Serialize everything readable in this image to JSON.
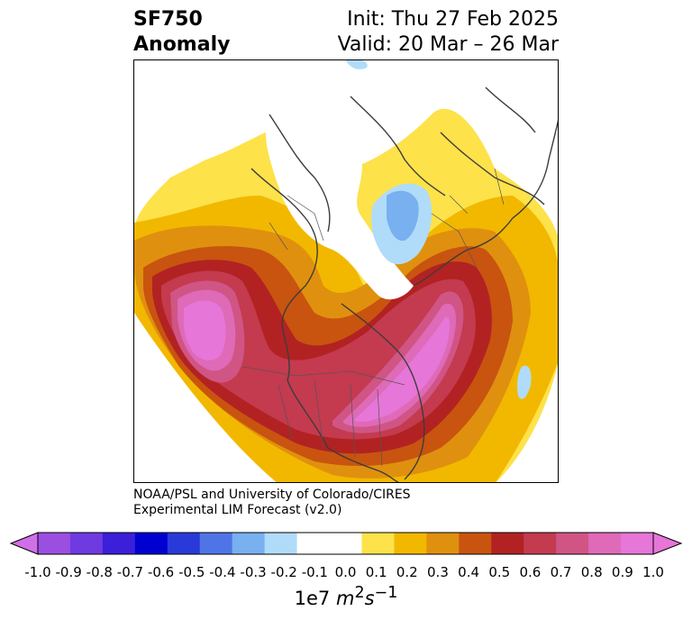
{
  "title": {
    "left_line1": "SF750",
    "left_line2": "Anomaly",
    "right_line1": "Init: Thu 27 Feb 2025",
    "right_line2": "Valid: 20 Mar – 26 Mar"
  },
  "credit": {
    "line1": "NOAA/PSL and University of Colorado/CIRES",
    "line2": "Experimental LIM Forecast (v2.0)"
  },
  "colorbar": {
    "levels": [
      "-1.0",
      "-0.9",
      "-0.8",
      "-0.7",
      "-0.6",
      "-0.5",
      "-0.4",
      "-0.3",
      "-0.2",
      "-0.1",
      "0.0",
      "0.1",
      "0.2",
      "0.3",
      "0.4",
      "0.5",
      "0.6",
      "0.7",
      "0.8",
      "0.9",
      "1.0"
    ],
    "colors": [
      "#9b4fe0",
      "#6f3ae0",
      "#3c1fd8",
      "#0000d0",
      "#2a3ad8",
      "#4f74e6",
      "#78b0f0",
      "#b0dcfa",
      "#ffffff",
      "#ffffff",
      "#fde24a",
      "#f2b800",
      "#e0900f",
      "#c85410",
      "#b22222",
      "#c43a4f",
      "#d05585",
      "#de6ab8",
      "#e676d8"
    ],
    "low_extend_color": "#d070e8",
    "high_extend_color": "#e676d8",
    "units_prefix": "1e7 ",
    "units_m": "m",
    "units_m_exp": "2",
    "units_s": "s",
    "units_s_exp": "−1"
  },
  "map": {
    "projection": "polar stereographic (north)",
    "anomaly_colors": {
      "strong_positive": "#e676d8",
      "positive_mid": "#b22222",
      "weak_positive": "#fde24a",
      "weak_negative": "#b0dcfa",
      "negative_mid": "#78b0f0"
    }
  }
}
